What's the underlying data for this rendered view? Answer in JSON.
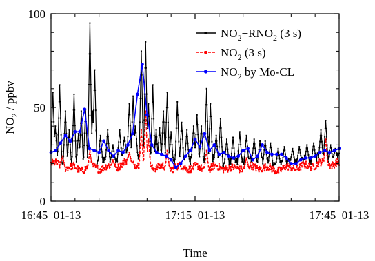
{
  "chart_data": {
    "type": "line",
    "title": "",
    "xlabel": "Time",
    "ylabel": "NO2 / ppbv",
    "ylabel_parts": {
      "main": "NO",
      "sub": "2",
      "rest": " / ppbv"
    },
    "xlim": [
      0,
      60
    ],
    "ylim": [
      0,
      100
    ],
    "x_unit": "minutes after 16:45",
    "xticks": [
      {
        "x": 0,
        "label": "16:45_01-13"
      },
      {
        "x": 30,
        "label": "17:15_01-13"
      },
      {
        "x": 60,
        "label": "17:45_01-13"
      }
    ],
    "yticks": [
      0,
      50,
      100
    ],
    "legend_position": "top-right",
    "grid": false,
    "series": [
      {
        "name": "NO2+RNO2 (3 s)",
        "label_parts": [
          [
            "NO",
            false
          ],
          [
            "2",
            true
          ],
          [
            "+RNO",
            false
          ],
          [
            "2",
            true
          ],
          [
            " (3 s)",
            false
          ]
        ],
        "color": "#000000",
        "marker": "square",
        "base": [
          [
            0,
            23
          ],
          [
            2,
            22
          ],
          [
            4,
            20
          ],
          [
            6,
            19
          ],
          [
            8,
            21
          ],
          [
            10,
            22
          ],
          [
            12,
            22
          ],
          [
            14,
            23
          ],
          [
            16,
            26
          ],
          [
            18,
            24
          ],
          [
            20,
            22
          ],
          [
            22,
            21
          ],
          [
            24,
            22
          ],
          [
            26,
            21
          ],
          [
            28,
            22
          ],
          [
            30,
            23
          ],
          [
            32,
            21
          ],
          [
            34,
            22
          ],
          [
            36,
            21
          ],
          [
            38,
            21
          ],
          [
            40,
            22
          ],
          [
            42,
            22
          ],
          [
            44,
            22
          ],
          [
            46,
            20
          ],
          [
            48,
            20
          ],
          [
            50,
            21
          ],
          [
            52,
            22
          ],
          [
            54,
            22
          ],
          [
            56,
            24
          ],
          [
            58,
            23
          ],
          [
            60,
            23
          ]
        ],
        "peaks": [
          [
            0.4,
            58
          ],
          [
            0.9,
            40
          ],
          [
            1.8,
            62
          ],
          [
            3.0,
            48
          ],
          [
            3.8,
            38
          ],
          [
            4.8,
            57
          ],
          [
            5.7,
            36
          ],
          [
            6.3,
            48
          ],
          [
            7.2,
            49
          ],
          [
            8.1,
            95
          ],
          [
            8.7,
            48
          ],
          [
            9.1,
            70
          ],
          [
            10.3,
            35
          ],
          [
            11.8,
            38
          ],
          [
            12.9,
            30
          ],
          [
            14.3,
            38
          ],
          [
            15.3,
            34
          ],
          [
            16.3,
            52
          ],
          [
            17.1,
            56
          ],
          [
            17.6,
            40
          ],
          [
            18.8,
            80
          ],
          [
            19.7,
            85
          ],
          [
            20.3,
            52
          ],
          [
            21.2,
            62
          ],
          [
            21.9,
            38
          ],
          [
            22.6,
            39
          ],
          [
            23.4,
            48
          ],
          [
            24.2,
            58
          ],
          [
            25.0,
            37
          ],
          [
            26.3,
            53
          ],
          [
            27.2,
            42
          ],
          [
            28.3,
            38
          ],
          [
            29.7,
            40
          ],
          [
            30.4,
            46
          ],
          [
            31.3,
            40
          ],
          [
            32.4,
            60
          ],
          [
            33.2,
            52
          ],
          [
            34.4,
            35
          ],
          [
            35.3,
            44
          ],
          [
            36.6,
            33
          ],
          [
            37.9,
            34
          ],
          [
            39.3,
            37
          ],
          [
            40.7,
            35
          ],
          [
            42.3,
            33
          ],
          [
            43.5,
            32
          ],
          [
            44.6,
            32
          ],
          [
            45.7,
            31
          ],
          [
            47.3,
            28
          ],
          [
            48.6,
            29
          ],
          [
            50.3,
            28
          ],
          [
            51.7,
            29
          ],
          [
            53.3,
            30
          ],
          [
            54.7,
            31
          ],
          [
            56.2,
            38
          ],
          [
            57.2,
            43
          ],
          [
            58.2,
            30
          ],
          [
            59.2,
            28
          ]
        ]
      },
      {
        "name": "NO2 (3 s)",
        "label_parts": [
          [
            "NO",
            false
          ],
          [
            "2",
            true
          ],
          [
            " (3 s)",
            false
          ]
        ],
        "color": "#ff0000",
        "marker": "square",
        "base": [
          [
            0,
            20
          ],
          [
            2,
            19
          ],
          [
            4,
            18
          ],
          [
            6,
            17
          ],
          [
            8,
            18
          ],
          [
            10,
            18
          ],
          [
            12,
            18
          ],
          [
            14,
            19
          ],
          [
            16,
            21
          ],
          [
            18,
            20
          ],
          [
            20,
            19
          ],
          [
            22,
            18
          ],
          [
            24,
            18
          ],
          [
            26,
            18
          ],
          [
            28,
            18
          ],
          [
            30,
            18
          ],
          [
            32,
            17
          ],
          [
            34,
            18
          ],
          [
            36,
            18
          ],
          [
            38,
            17
          ],
          [
            40,
            18
          ],
          [
            42,
            18
          ],
          [
            44,
            18
          ],
          [
            46,
            17
          ],
          [
            48,
            17
          ],
          [
            50,
            18
          ],
          [
            52,
            18
          ],
          [
            54,
            19
          ],
          [
            56,
            20
          ],
          [
            58,
            20
          ],
          [
            60,
            20
          ]
        ],
        "peaks": [
          [
            2.4,
            24
          ],
          [
            8.1,
            27
          ],
          [
            12.9,
            22
          ],
          [
            16.3,
            26
          ],
          [
            18.8,
            38
          ],
          [
            19.7,
            48
          ],
          [
            20.3,
            33
          ],
          [
            24.2,
            27
          ],
          [
            32.4,
            27
          ],
          [
            40.7,
            23
          ],
          [
            57.2,
            33
          ]
        ]
      },
      {
        "name": "NO2 by Mo-CL",
        "label_parts": [
          [
            "NO",
            false
          ],
          [
            "2",
            true
          ],
          [
            " by Mo-CL",
            false
          ]
        ],
        "color": "#0000ff",
        "marker": "circle",
        "points": [
          [
            0,
            26
          ],
          [
            1,
            27
          ],
          [
            2,
            31
          ],
          [
            3,
            35
          ],
          [
            4,
            32
          ],
          [
            5,
            37
          ],
          [
            6,
            37
          ],
          [
            7,
            49
          ],
          [
            8,
            28
          ],
          [
            9,
            27
          ],
          [
            10,
            26
          ],
          [
            11,
            32
          ],
          [
            12,
            27
          ],
          [
            13,
            24
          ],
          [
            14,
            27
          ],
          [
            15,
            26
          ],
          [
            16,
            30
          ],
          [
            17,
            36
          ],
          [
            18,
            57
          ],
          [
            19,
            73
          ],
          [
            20,
            46
          ],
          [
            21,
            30
          ],
          [
            22,
            26
          ],
          [
            23,
            25
          ],
          [
            24,
            24
          ],
          [
            25,
            22
          ],
          [
            26,
            18
          ],
          [
            27,
            20
          ],
          [
            28,
            24
          ],
          [
            29,
            27
          ],
          [
            30,
            33
          ],
          [
            31,
            29
          ],
          [
            32,
            36
          ],
          [
            33,
            27
          ],
          [
            34,
            30
          ],
          [
            35,
            25
          ],
          [
            36,
            26
          ],
          [
            37,
            24
          ],
          [
            38,
            23
          ],
          [
            39,
            24
          ],
          [
            40,
            27
          ],
          [
            41,
            28
          ],
          [
            42,
            22
          ],
          [
            43,
            24
          ],
          [
            44,
            30
          ],
          [
            45,
            26
          ],
          [
            46,
            25
          ],
          [
            47,
            25
          ],
          [
            48,
            25
          ],
          [
            49,
            23
          ],
          [
            50,
            20
          ],
          [
            51,
            20
          ],
          [
            52,
            22
          ],
          [
            53,
            23
          ],
          [
            54,
            23
          ],
          [
            55,
            24
          ],
          [
            56,
            26
          ],
          [
            57,
            27
          ],
          [
            58,
            26
          ],
          [
            59,
            27
          ],
          [
            60,
            28
          ]
        ]
      }
    ]
  }
}
